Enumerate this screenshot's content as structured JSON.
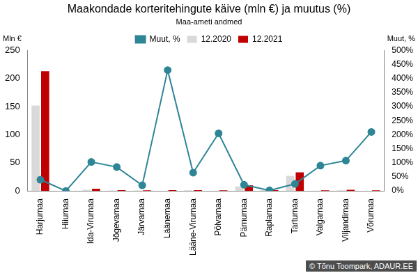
{
  "chart_data": {
    "type": "bar",
    "title": "Maakondade korteritehingute käive (mln €) ja muutus (%)",
    "subtitle": "Maa-ameti andmed",
    "categories": [
      "Harjumaa",
      "Hiiumaa",
      "Ida-Virumaa",
      "Jõgevamaa",
      "Järvamaa",
      "Läänemaa",
      "Lääne-Virumaa",
      "Põlvamaa",
      "Pärnumaa",
      "Raplamaa",
      "Tartumaa",
      "Valgamaa",
      "Viljandimaa",
      "Võrumaa"
    ],
    "series": [
      {
        "name": "12.2020",
        "type": "bar",
        "color": "#d9d9d9",
        "values": [
          152,
          0.3,
          2,
          0.8,
          0.8,
          0.3,
          1,
          0.3,
          8,
          1.5,
          27,
          0.5,
          1,
          0.3
        ]
      },
      {
        "name": "12.2021",
        "type": "bar",
        "color": "#c00000",
        "values": [
          213,
          0,
          4,
          1.5,
          1,
          1.5,
          1.5,
          1,
          10,
          1.5,
          33,
          1,
          2,
          1
        ]
      },
      {
        "name": "Muut, %",
        "type": "line",
        "axis": "y2",
        "color": "#2e8596",
        "marker": "circle",
        "values": [
          40,
          0,
          103,
          85,
          20,
          430,
          65,
          205,
          22,
          2,
          25,
          90,
          108,
          210
        ]
      }
    ],
    "y_label": "Mln €",
    "y2_label": "Muut, %",
    "ylim": [
      0,
      250
    ],
    "yticks": [
      0,
      50,
      100,
      150,
      200,
      250
    ],
    "y2lim": [
      0,
      500
    ],
    "y2ticks": [
      {
        "value": 0,
        "label": "0%"
      },
      {
        "value": 50,
        "label": "50%"
      },
      {
        "value": 100,
        "label": "100%"
      },
      {
        "value": 150,
        "label": "150%"
      },
      {
        "value": 200,
        "label": "200%"
      },
      {
        "value": 250,
        "label": "250%"
      },
      {
        "value": 300,
        "label": "300%"
      },
      {
        "value": 350,
        "label": "350%"
      },
      {
        "value": 400,
        "label": "400%"
      },
      {
        "value": 450,
        "label": "450%"
      },
      {
        "value": 500,
        "label": "500%"
      }
    ],
    "legend": "top",
    "grid": false,
    "annotations": [
      "© Tõnu Toompark, ADAUR.EE"
    ]
  }
}
